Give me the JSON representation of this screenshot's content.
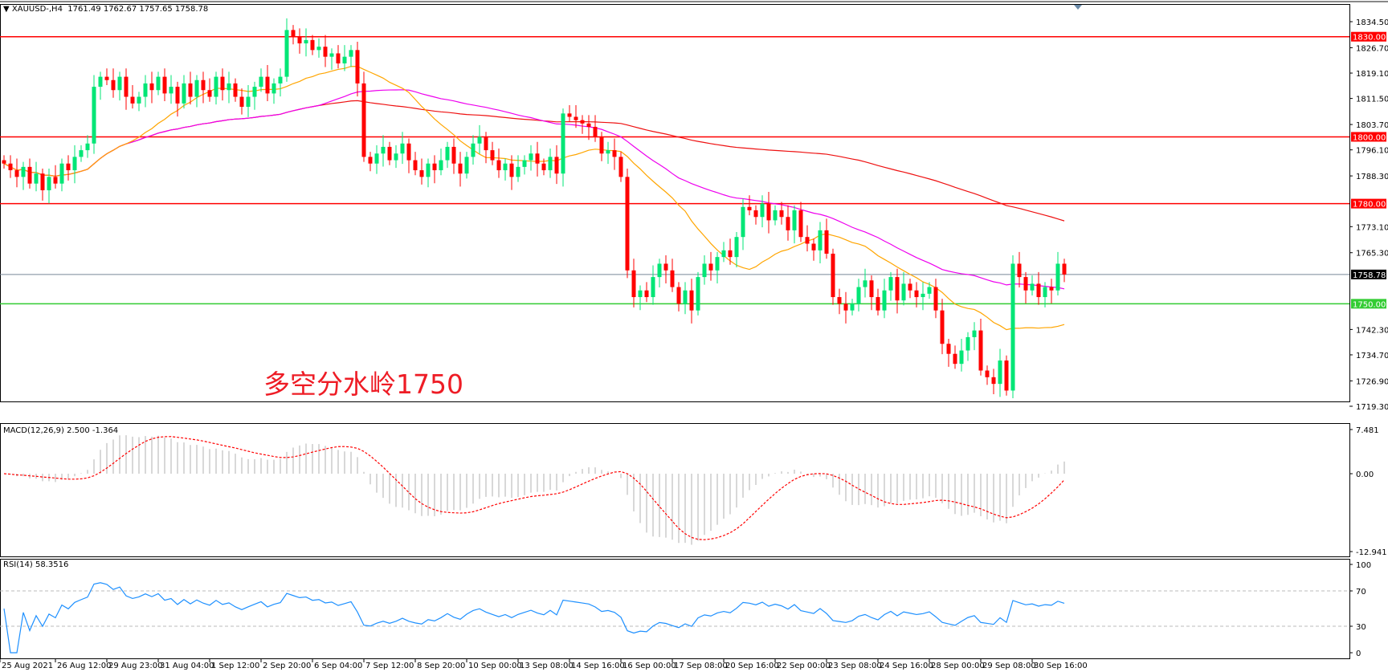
{
  "header": {
    "symbol_label": "XAUUSD-,H4",
    "ohlc_text": "1761.49 1762.67 1757.65 1758.78"
  },
  "annotation": "多空分水岭1750",
  "macd_label": "MACD(12,26,9) 2.500 -1.364",
  "rsi_label": "RSI(14) 58.3516",
  "colors": {
    "bull": "#00e676",
    "bear": "#ff0000",
    "ma_fast": "#ffa500",
    "ma_mid": "#ee00ee",
    "ma_slow": "#ee1111",
    "support": "#33cc33",
    "resistance": "#ff0000",
    "price_line": "#778899",
    "rsi": "#1e90ff",
    "macd_hist": "#b0b0b0",
    "macd_signal": "#ff0000"
  },
  "chart_data": {
    "type": "candlestick",
    "symbol": "XAUUSD-",
    "timeframe": "H4",
    "y_ticks": [
      "1834.50",
      "1826.70",
      "1819.10",
      "1811.50",
      "1803.70",
      "1796.10",
      "1788.30",
      "1773.10",
      "1765.30",
      "1742.30",
      "1734.70",
      "1726.90",
      "1719.30"
    ],
    "ylim": [
      1719.3,
      1834.5
    ],
    "x_ticks": [
      "25 Aug 2021",
      "26 Aug 12:00",
      "29 Aug 23:00",
      "31 Aug 04:00",
      "1 Sep 12:00",
      "2 Sep 20:00",
      "6 Sep 04:00",
      "7 Sep 12:00",
      "8 Sep 20:00",
      "10 Sep 00:00",
      "13 Sep 08:00",
      "14 Sep 16:00",
      "16 Sep 00:00",
      "17 Sep 08:00",
      "20 Sep 16:00",
      "22 Sep 00:00",
      "23 Sep 08:00",
      "24 Sep 16:00",
      "28 Sep 00:00",
      "29 Sep 08:00",
      "30 Sep 16:00"
    ],
    "levels": [
      {
        "value": 1830.0,
        "label": "1830.00",
        "kind": "resistance"
      },
      {
        "value": 1800.0,
        "label": "1800.00",
        "kind": "resistance"
      },
      {
        "value": 1780.0,
        "label": "1780.00",
        "kind": "resistance"
      },
      {
        "value": 1750.0,
        "label": "1750.00",
        "kind": "support"
      }
    ],
    "current_price": {
      "value": 1758.78,
      "label": "1758.78"
    },
    "close": [
      1792,
      1790,
      1788,
      1791,
      1786,
      1789,
      1784,
      1788,
      1786,
      1792,
      1790,
      1794,
      1796,
      1798,
      1815,
      1818,
      1817,
      1814,
      1818,
      1812,
      1810,
      1812,
      1816,
      1814,
      1818,
      1813,
      1815,
      1810,
      1816,
      1812,
      1817,
      1814,
      1812,
      1818,
      1814,
      1816,
      1812,
      1809,
      1812,
      1815,
      1818,
      1813,
      1816,
      1818,
      1832,
      1830,
      1828,
      1829,
      1826,
      1827,
      1824,
      1825,
      1822,
      1824,
      1826,
      1816,
      1794,
      1792,
      1795,
      1797,
      1793,
      1795,
      1798,
      1793,
      1790,
      1788,
      1792,
      1790,
      1793,
      1797,
      1792,
      1789,
      1794,
      1798,
      1800,
      1796,
      1793,
      1790,
      1792,
      1788,
      1791,
      1793,
      1795,
      1792,
      1790,
      1794,
      1789,
      1807,
      1806,
      1805,
      1804,
      1803,
      1800,
      1795,
      1796,
      1794,
      1788,
      1760,
      1752,
      1754,
      1752,
      1758,
      1762,
      1760,
      1755,
      1750,
      1754,
      1748,
      1758,
      1762,
      1760,
      1764,
      1766,
      1764,
      1770,
      1779,
      1778,
      1776,
      1780,
      1775,
      1778,
      1776,
      1772,
      1778,
      1770,
      1768,
      1766,
      1772,
      1765,
      1752,
      1750,
      1748,
      1750,
      1755,
      1757,
      1752,
      1748,
      1754,
      1758,
      1751,
      1756,
      1754,
      1752,
      1753,
      1755,
      1748,
      1738,
      1735,
      1732,
      1736,
      1740,
      1742,
      1730,
      1728,
      1726,
      1733,
      1724,
      1762,
      1758,
      1754,
      1756,
      1752,
      1755,
      1754,
      1762,
      1758.78
    ],
    "indicators": {
      "macd": {
        "params": "12,26,9",
        "axis_ticks": [
          "7.481",
          "0.00",
          "-12.941"
        ],
        "range": [
          -12.941,
          7.481
        ]
      },
      "rsi": {
        "period": 14,
        "axis_ticks": [
          "100",
          "70",
          "30",
          "0"
        ],
        "levels": [
          70,
          30
        ]
      }
    }
  }
}
